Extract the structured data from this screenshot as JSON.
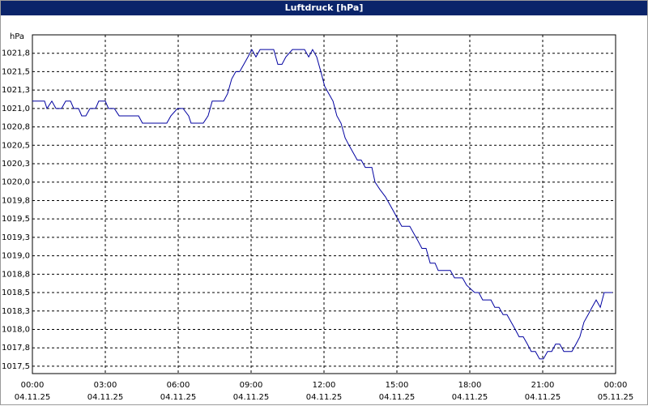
{
  "chart_data": {
    "type": "line",
    "title": "Luftdruck [hPa]",
    "y_unit": "hPa",
    "x": [
      0,
      0.5,
      0.6,
      0.8,
      0.97,
      1.2,
      1.37,
      1.57,
      1.7,
      1.9,
      2.03,
      2.2,
      2.37,
      2.6,
      2.73,
      3.0,
      3.13,
      3.37,
      3.57,
      4.37,
      4.53,
      5.53,
      5.7,
      5.97,
      6.2,
      6.43,
      6.53,
      7.03,
      7.23,
      7.4,
      7.87,
      8.03,
      8.2,
      8.37,
      8.53,
      8.7,
      8.87,
      9.03,
      9.2,
      9.37,
      9.93,
      10.1,
      10.27,
      10.43,
      10.7,
      11.2,
      11.37,
      11.53,
      11.7,
      11.87,
      12.03,
      12.2,
      12.37,
      12.53,
      12.7,
      12.87,
      13.03,
      13.2,
      13.37,
      13.53,
      13.7,
      13.97,
      14.1,
      14.3,
      14.53,
      14.7,
      14.87,
      15.03,
      15.2,
      15.53,
      15.7,
      15.87,
      16.03,
      16.2,
      16.37,
      16.57,
      16.7,
      17.2,
      17.37,
      17.7,
      17.87,
      18.2,
      18.37,
      18.53,
      18.87,
      19.03,
      19.2,
      19.37,
      19.53,
      19.7,
      19.87,
      20.03,
      20.2,
      20.37,
      20.53,
      20.7,
      20.87,
      21.03,
      21.2,
      21.37,
      21.53,
      21.7,
      21.87,
      22.2,
      22.37,
      22.53,
      22.7,
      22.87,
      23.03,
      23.2,
      23.37,
      23.53,
      23.87
    ],
    "series": [
      {
        "color": "#0000a0",
        "values": [
          1021.1,
          1021.1,
          1021.0,
          1021.1,
          1021.0,
          1021.0,
          1021.1,
          1021.1,
          1021.0,
          1021.0,
          1020.9,
          1020.9,
          1021.0,
          1021.0,
          1021.1,
          1021.1,
          1021.0,
          1021.0,
          1020.9,
          1020.9,
          1020.8,
          1020.8,
          1020.9,
          1021.0,
          1021.0,
          1020.9,
          1020.8,
          1020.8,
          1020.9,
          1021.1,
          1021.1,
          1021.2,
          1021.4,
          1021.5,
          1021.5,
          1021.6,
          1021.7,
          1021.8,
          1021.7,
          1021.8,
          1021.8,
          1021.6,
          1021.6,
          1021.7,
          1021.8,
          1021.8,
          1021.7,
          1021.8,
          1021.7,
          1021.5,
          1021.3,
          1021.2,
          1021.1,
          1020.9,
          1020.8,
          1020.6,
          1020.5,
          1020.4,
          1020.3,
          1020.3,
          1020.2,
          1020.2,
          1020.0,
          1019.9,
          1019.8,
          1019.7,
          1019.6,
          1019.5,
          1019.4,
          1019.4,
          1019.3,
          1019.2,
          1019.1,
          1019.1,
          1018.9,
          1018.9,
          1018.8,
          1018.8,
          1018.7,
          1018.7,
          1018.6,
          1018.5,
          1018.5,
          1018.4,
          1018.4,
          1018.3,
          1018.3,
          1018.2,
          1018.2,
          1018.1,
          1018.0,
          1017.9,
          1017.9,
          1017.8,
          1017.7,
          1017.7,
          1017.6,
          1017.6,
          1017.7,
          1017.7,
          1017.8,
          1017.8,
          1017.7,
          1017.7,
          1017.8,
          1017.9,
          1018.1,
          1018.2,
          1018.3,
          1018.4,
          1018.3,
          1018.5,
          1018.5
        ]
      }
    ],
    "xlim": [
      0,
      24
    ],
    "xticks": [
      {
        "value": 0,
        "label": "00:00",
        "date": "04.11.25"
      },
      {
        "value": 3,
        "label": "03:00",
        "date": "04.11.25"
      },
      {
        "value": 6,
        "label": "06:00",
        "date": "04.11.25"
      },
      {
        "value": 9,
        "label": "09:00",
        "date": "04.11.25"
      },
      {
        "value": 12,
        "label": "12:00",
        "date": "04.11.25"
      },
      {
        "value": 15,
        "label": "15:00",
        "date": "04.11.25"
      },
      {
        "value": 18,
        "label": "18:00",
        "date": "04.11.25"
      },
      {
        "value": 21,
        "label": "21:00",
        "date": "04.11.25"
      },
      {
        "value": 24,
        "label": "00:00",
        "date": "05.11.25"
      }
    ],
    "ylim": [
      1017.4,
      1022.0
    ],
    "yticks": [
      {
        "value": 1017.5,
        "label": "1017,5"
      },
      {
        "value": 1017.75,
        "label": "1017,8"
      },
      {
        "value": 1018.0,
        "label": "1018,0"
      },
      {
        "value": 1018.25,
        "label": "1018,3"
      },
      {
        "value": 1018.5,
        "label": "1018,5"
      },
      {
        "value": 1018.75,
        "label": "1018,8"
      },
      {
        "value": 1019.0,
        "label": "1019,0"
      },
      {
        "value": 1019.25,
        "label": "1019,3"
      },
      {
        "value": 1019.5,
        "label": "1019,5"
      },
      {
        "value": 1019.75,
        "label": "1019,8"
      },
      {
        "value": 1020.0,
        "label": "1020,0"
      },
      {
        "value": 1020.25,
        "label": "1020,3"
      },
      {
        "value": 1020.5,
        "label": "1020,5"
      },
      {
        "value": 1020.75,
        "label": "1020,8"
      },
      {
        "value": 1021.0,
        "label": "1021,0"
      },
      {
        "value": 1021.25,
        "label": "1021,3"
      },
      {
        "value": 1021.5,
        "label": "1021,5"
      },
      {
        "value": 1021.75,
        "label": "1021,8"
      }
    ],
    "grid": true
  }
}
